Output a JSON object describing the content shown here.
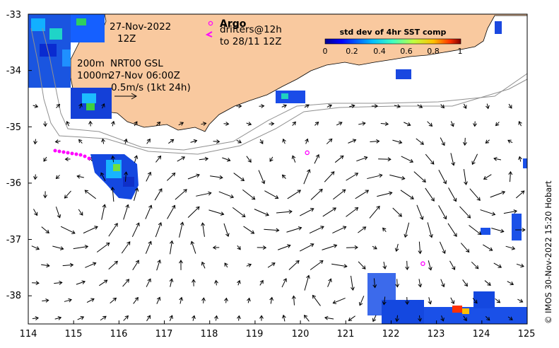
{
  "map": {
    "x_ticks": [
      "114",
      "115",
      "116",
      "117",
      "118",
      "119",
      "120",
      "121",
      "122",
      "123",
      "124",
      "125"
    ],
    "y_ticks": [
      "-33",
      "-34",
      "-35",
      "-36",
      "-37",
      "-38"
    ],
    "lon_range": [
      114,
      125
    ],
    "lat_range": [
      -38.5,
      -33
    ],
    "land_color": "#f9c99f",
    "argo_color": "#ff00ff"
  },
  "annotations": {
    "date": "27-Nov-2022",
    "hour": "12Z",
    "depth_line1": "200m",
    "depth_line2": "1000m",
    "product": "NRT00 GSL",
    "product_time": "27-Nov 06:00Z",
    "scale_label": "0.5m/s (1kt 24h)",
    "argo_label": "Argo",
    "drifters_line1": "drifters@12h",
    "drifters_line2": "to 28/11 12Z"
  },
  "colorbar": {
    "title": "std dev of 4hr SST comp",
    "ticks": [
      "0",
      "0.2",
      "0.4",
      "0.6",
      "0.8",
      "1"
    ]
  },
  "credit": "© IMOS 30-Nov-2022 15:20 Hobart",
  "argo_floats": [
    {
      "lon": 120.15,
      "lat": -35.46
    },
    {
      "lon": 122.7,
      "lat": -37.43
    }
  ]
}
